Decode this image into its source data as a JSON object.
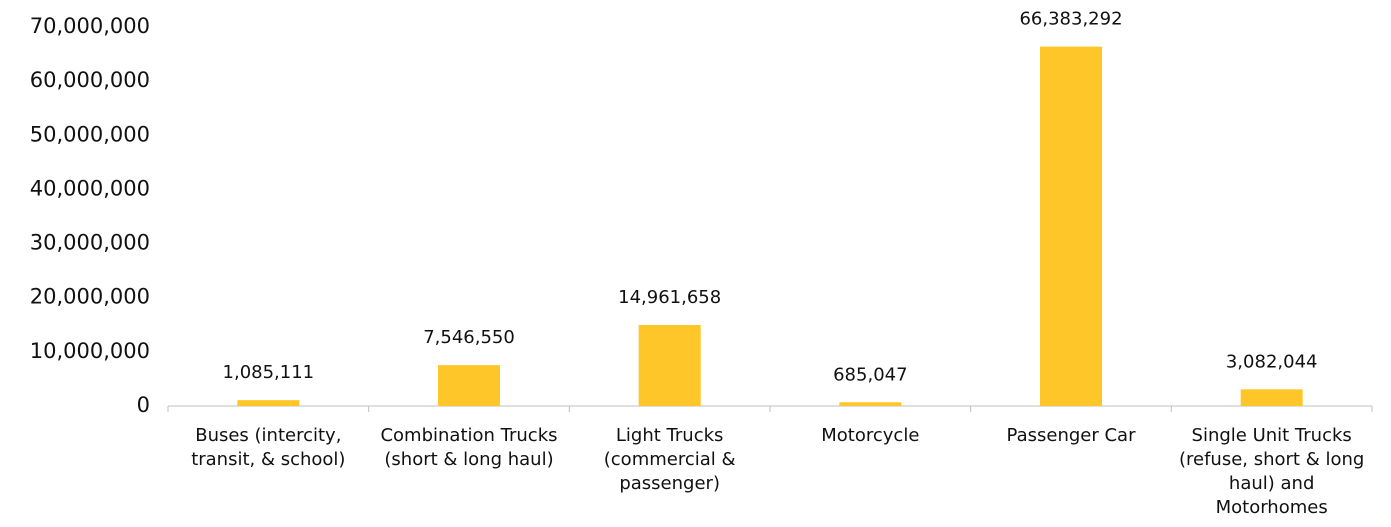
{
  "chart_data": {
    "type": "bar",
    "categories": [
      "Buses (intercity, transit, & school)",
      "Combination Trucks (short & long haul)",
      "Light Trucks (commercial & passenger)",
      "Motorcycle",
      "Passenger Car",
      "Single Unit Trucks (refuse, short & long haul) and Motorhomes"
    ],
    "values": [
      1085111,
      7546550,
      14961658,
      685047,
      66383292,
      3082044
    ],
    "value_labels": [
      "1,085,111",
      "7,546,550",
      "14,961,658",
      "685,047",
      "66,383,292",
      "3,082,044"
    ],
    "color": "#ffc629",
    "ylim": [
      0,
      70000000
    ],
    "yticks": [
      0,
      {
        "value": 10000000,
        "label": "10,000,000"
      },
      {
        "value": 20000000,
        "label": "20,000,000"
      },
      {
        "value": 30000000,
        "label": "30,000,000"
      },
      {
        "value": 40000000,
        "label": "40,000,000"
      },
      {
        "value": 50000000,
        "label": "50,000,000"
      },
      {
        "value": 60000000,
        "label": "60,000,000"
      },
      {
        "value": 70000000,
        "label": "70,000,000"
      }
    ],
    "grid": false
  }
}
